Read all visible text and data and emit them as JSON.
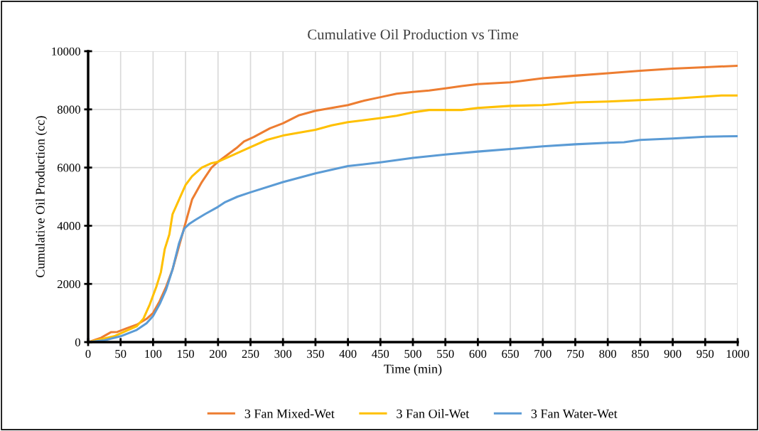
{
  "chart_data": {
    "type": "line",
    "title": "Cumulative Oil Production vs Time",
    "xlabel": "Time (min)",
    "ylabel": "Cumulative Oil Production (cc)",
    "xlim": [
      0,
      1000
    ],
    "xticks": [
      0,
      50,
      100,
      150,
      200,
      250,
      300,
      350,
      400,
      450,
      500,
      550,
      600,
      650,
      700,
      750,
      800,
      850,
      900,
      950,
      1000
    ],
    "ylim": [
      0,
      10000
    ],
    "yticks": [
      0,
      2000,
      4000,
      6000,
      8000,
      10000
    ],
    "grid": true,
    "legend": "bottom",
    "marker": "none",
    "line_style": "solid",
    "series": [
      {
        "name": "3 Fan Mixed-Wet",
        "color": "#ed7d31",
        "x": [
          0,
          20,
          35,
          45,
          60,
          75,
          90,
          100,
          110,
          120,
          130,
          140,
          150,
          160,
          175,
          190,
          200,
          215,
          230,
          240,
          255,
          280,
          300,
          325,
          350,
          375,
          400,
          425,
          450,
          475,
          500,
          525,
          550,
          575,
          600,
          650,
          700,
          750,
          800,
          850,
          900,
          950,
          1000
        ],
        "values": [
          0,
          150,
          340,
          350,
          480,
          600,
          800,
          1000,
          1400,
          1900,
          2500,
          3300,
          4100,
          4900,
          5500,
          6000,
          6200,
          6450,
          6700,
          6900,
          7050,
          7350,
          7520,
          7800,
          7950,
          8050,
          8150,
          8300,
          8420,
          8540,
          8600,
          8650,
          8720,
          8800,
          8870,
          8930,
          9070,
          9160,
          9240,
          9330,
          9400,
          9450,
          9500
        ]
      },
      {
        "name": "3 Fan Oil-Wet",
        "color": "#ffc000",
        "x": [
          0,
          20,
          40,
          60,
          75,
          85,
          95,
          105,
          112,
          118,
          125,
          130,
          140,
          150,
          160,
          175,
          190,
          200,
          225,
          250,
          275,
          300,
          350,
          375,
          400,
          450,
          475,
          500,
          525,
          575,
          600,
          650,
          700,
          750,
          800,
          850,
          900,
          950,
          975,
          1000
        ],
        "values": [
          0,
          100,
          200,
          400,
          550,
          800,
          1300,
          1900,
          2400,
          3200,
          3700,
          4400,
          4900,
          5400,
          5700,
          6000,
          6150,
          6200,
          6450,
          6700,
          6950,
          7100,
          7300,
          7450,
          7560,
          7700,
          7780,
          7900,
          7980,
          7980,
          8050,
          8120,
          8150,
          8240,
          8270,
          8320,
          8370,
          8440,
          8480,
          8480
        ]
      },
      {
        "name": "3 Fan Water-Wet",
        "color": "#5b9bd5",
        "x": [
          0,
          25,
          50,
          75,
          90,
          100,
          110,
          120,
          130,
          140,
          148,
          155,
          165,
          180,
          200,
          210,
          230,
          250,
          300,
          350,
          400,
          450,
          500,
          550,
          600,
          650,
          700,
          750,
          800,
          825,
          850,
          900,
          950,
          1000
        ],
        "values": [
          0,
          60,
          200,
          420,
          650,
          900,
          1300,
          1800,
          2500,
          3400,
          3900,
          4050,
          4200,
          4400,
          4650,
          4800,
          5000,
          5150,
          5500,
          5800,
          6050,
          6180,
          6330,
          6450,
          6550,
          6640,
          6730,
          6800,
          6850,
          6870,
          6950,
          7000,
          7060,
          7080
        ]
      }
    ]
  }
}
